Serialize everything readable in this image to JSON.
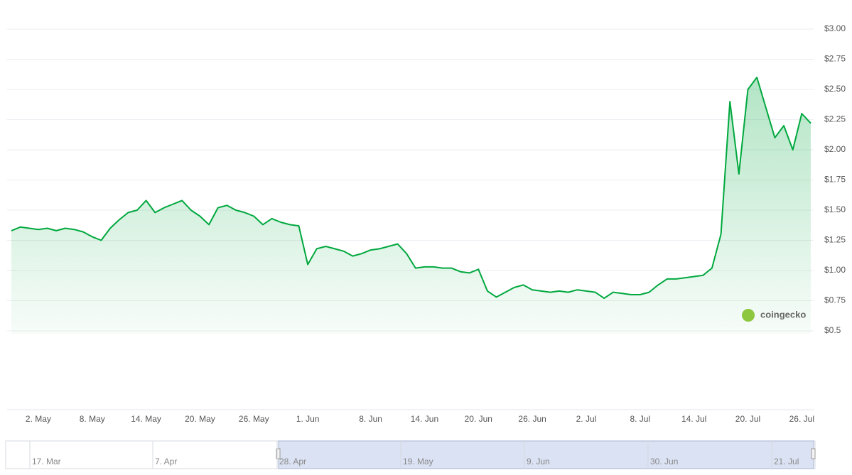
{
  "chart_data": {
    "type": "line",
    "categories": [
      null,
      null,
      null,
      "2. May",
      null,
      null,
      null,
      null,
      null,
      "8. May",
      null,
      null,
      null,
      null,
      null,
      "14. May",
      null,
      null,
      null,
      null,
      null,
      "20. May",
      null,
      null,
      null,
      null,
      null,
      "26. May",
      null,
      null,
      null,
      null,
      null,
      "1. Jun",
      null,
      null,
      null,
      null,
      null,
      null,
      "8. Jun",
      null,
      null,
      null,
      null,
      null,
      "14. Jun",
      null,
      null,
      null,
      null,
      null,
      "20. Jun",
      null,
      null,
      null,
      null,
      null,
      "26. Jun",
      null,
      null,
      null,
      null,
      null,
      "2. Jul",
      null,
      null,
      null,
      null,
      null,
      "8. Jul",
      null,
      null,
      null,
      null,
      null,
      "14. Jul",
      null,
      null,
      null,
      null,
      null,
      "20. Jul",
      null,
      null,
      null,
      null,
      null,
      "26. Jul",
      null
    ],
    "series": [
      {
        "color": "#00a83e",
        "values": [
          1.33,
          1.36,
          1.35,
          1.34,
          1.35,
          1.33,
          1.35,
          1.34,
          1.32,
          1.28,
          1.25,
          1.35,
          1.42,
          1.48,
          1.5,
          1.58,
          1.48,
          1.52,
          1.55,
          1.58,
          1.5,
          1.45,
          1.38,
          1.52,
          1.54,
          1.5,
          1.48,
          1.45,
          1.38,
          1.43,
          1.4,
          1.38,
          1.37,
          1.05,
          1.18,
          1.2,
          1.18,
          1.16,
          1.12,
          1.14,
          1.17,
          1.18,
          1.2,
          1.22,
          1.14,
          1.02,
          1.03,
          1.03,
          1.02,
          1.02,
          0.99,
          0.98,
          1.01,
          0.83,
          0.78,
          0.82,
          0.86,
          0.88,
          0.84,
          0.83,
          0.82,
          0.83,
          0.82,
          0.84,
          0.83,
          0.82,
          0.77,
          0.82,
          0.81,
          0.8,
          0.8,
          0.82,
          0.88,
          0.93,
          0.93,
          0.94,
          0.95,
          0.96,
          1.02,
          1.3,
          2.4,
          1.8,
          2.5,
          2.6,
          2.35,
          2.1,
          2.2,
          2.0,
          2.3,
          2.22
        ]
      }
    ],
    "ylim": [
      0.5,
      3.0
    ],
    "yticks": [
      {
        "value": 0.5,
        "label": "$0.5"
      },
      {
        "value": 0.75,
        "label": "$0.75"
      },
      {
        "value": 1.0,
        "label": "$1.00"
      },
      {
        "value": 1.25,
        "label": "$1.25"
      },
      {
        "value": 1.5,
        "label": "$1.50"
      },
      {
        "value": 1.75,
        "label": "$1.75"
      },
      {
        "value": 2.0,
        "label": "$2.00"
      },
      {
        "value": 2.25,
        "label": "$2.25"
      },
      {
        "value": 2.5,
        "label": "$2.50"
      },
      {
        "value": 2.75,
        "label": "$2.75"
      },
      {
        "value": 3.0,
        "label": "$3.00"
      }
    ],
    "grid": true,
    "watermark": "coingecko",
    "navigator": {
      "labels": [
        "17. Mar",
        "7. Apr",
        "28. Apr",
        "19. May",
        "9. Jun",
        "30. Jun",
        "21. Jul"
      ]
    }
  }
}
